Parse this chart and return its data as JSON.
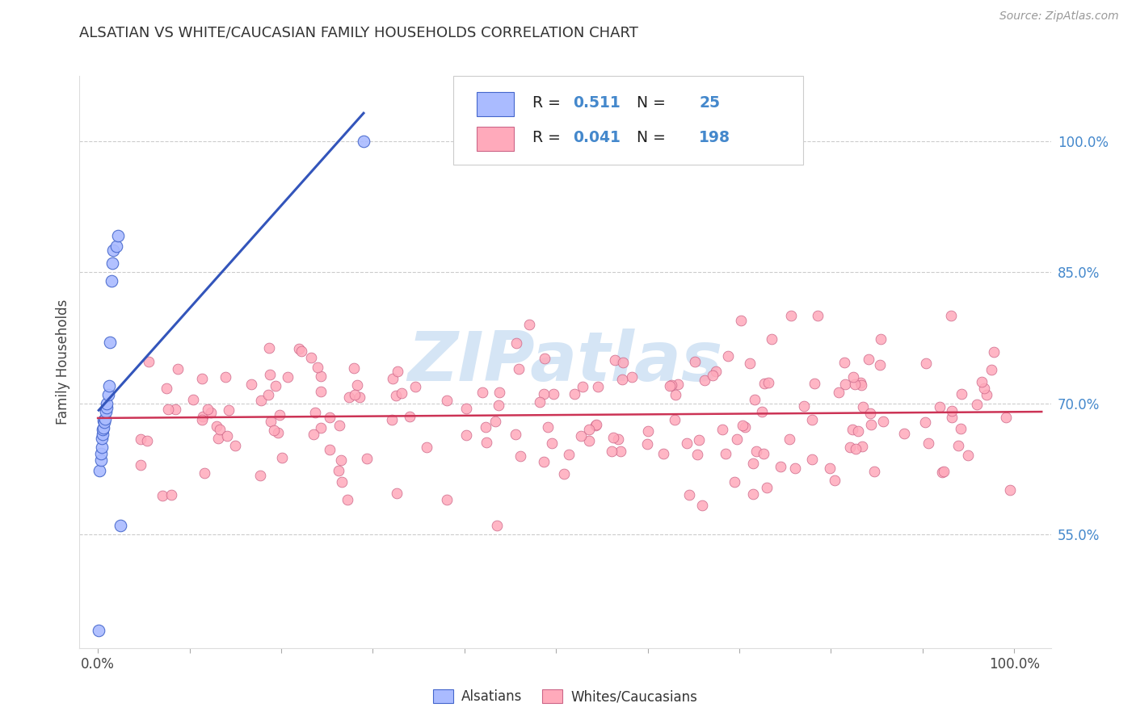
{
  "title": "ALSATIAN VS WHITE/CAUCASIAN FAMILY HOUSEHOLDS CORRELATION CHART",
  "source": "Source: ZipAtlas.com",
  "ylabel": "Family Households",
  "color_alsatian_fill": "#aabbff",
  "color_alsatian_edge": "#4466cc",
  "color_white_fill": "#ffaabb",
  "color_white_edge": "#cc6688",
  "color_line_alsatian": "#3355bb",
  "color_line_white": "#cc3355",
  "background_color": "#ffffff",
  "watermark_color": "#d5e5f5",
  "ytick_right_color": "#4488cc",
  "title_color": "#333333",
  "source_color": "#999999",
  "grid_color": "#cccccc",
  "xlim": [
    -0.02,
    1.04
  ],
  "ylim": [
    0.42,
    1.075
  ],
  "yticks": [
    0.55,
    0.7,
    0.85,
    1.0
  ],
  "ytick_labels": [
    "55.0%",
    "70.0%",
    "85.0%",
    "100.0%"
  ],
  "als_x": [
    0.001,
    0.002,
    0.003,
    0.003,
    0.004,
    0.004,
    0.005,
    0.005,
    0.006,
    0.006,
    0.007,
    0.008,
    0.009,
    0.01,
    0.01,
    0.011,
    0.012,
    0.013,
    0.015,
    0.016,
    0.017,
    0.02,
    0.022,
    0.025,
    0.29
  ],
  "als_y": [
    0.44,
    0.623,
    0.635,
    0.642,
    0.65,
    0.66,
    0.665,
    0.67,
    0.672,
    0.68,
    0.678,
    0.682,
    0.69,
    0.695,
    0.7,
    0.71,
    0.72,
    0.77,
    0.84,
    0.86,
    0.875,
    0.88,
    0.892,
    0.56,
    1.0
  ]
}
